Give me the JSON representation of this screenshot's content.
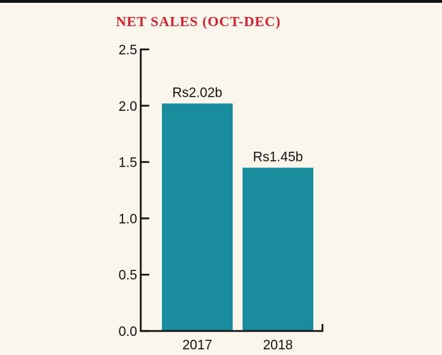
{
  "chart_data": {
    "type": "bar",
    "title": "NET SALES (OCT-DEC)",
    "xlabel": "",
    "ylabel": "",
    "categories": [
      "2017",
      "2018"
    ],
    "values": [
      2.02,
      1.45
    ],
    "data_labels": [
      "Rs2.02b",
      "Rs1.45b"
    ],
    "yticks": [
      "0.0",
      "0.5",
      "1.0",
      "1.5",
      "2.0",
      "2.5"
    ],
    "ylim": [
      0,
      2.5
    ],
    "grid": false,
    "legend": "none",
    "colors": {
      "bar": "#198d9e",
      "title": "#d7202e",
      "axis": "#111111",
      "background": "#faf6ec"
    }
  }
}
